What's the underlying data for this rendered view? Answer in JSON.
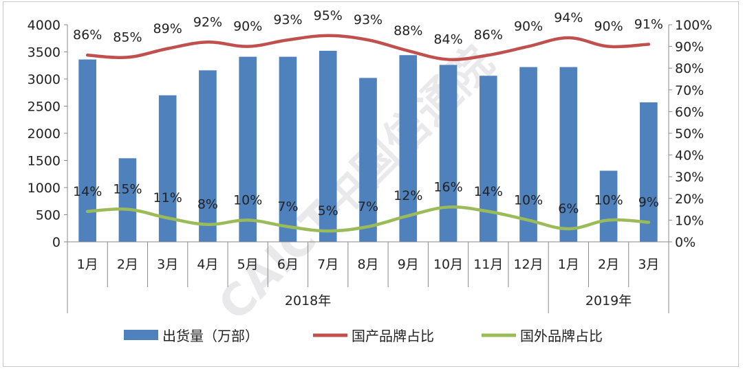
{
  "chart_data": {
    "type": "bar",
    "categories": [
      "1月",
      "2月",
      "3月",
      "4月",
      "5月",
      "6月",
      "7月",
      "8月",
      "9月",
      "10月",
      "11月",
      "12月",
      "1月",
      "2月",
      "3月"
    ],
    "groups": [
      {
        "label": "2018年",
        "count": 12
      },
      {
        "label": "2019年",
        "count": 3
      }
    ],
    "series": [
      {
        "name": "出货量（万部）",
        "type": "bar",
        "axis": "left",
        "values": [
          3360,
          1540,
          2700,
          3160,
          3410,
          3410,
          3520,
          3020,
          3440,
          3260,
          3060,
          3220,
          3220,
          1310,
          2570
        ],
        "color": "#4f81bd"
      },
      {
        "name": "国产品牌占比",
        "type": "line",
        "axis": "right",
        "values": [
          86,
          85,
          89,
          92,
          90,
          93,
          95,
          93,
          88,
          84,
          86,
          90,
          94,
          90,
          91
        ],
        "labels": [
          "86%",
          "85%",
          "89%",
          "92%",
          "90%",
          "93%",
          "95%",
          "93%",
          "88%",
          "84%",
          "86%",
          "90%",
          "94%",
          "90%",
          "91%"
        ],
        "color": "#c0504d"
      },
      {
        "name": "国外品牌占比",
        "type": "line",
        "axis": "right",
        "values": [
          14,
          15,
          11,
          8,
          10,
          7,
          5,
          7,
          12,
          16,
          14,
          10,
          6,
          10,
          9
        ],
        "labels": [
          "14%",
          "15%",
          "11%",
          "8%",
          "10%",
          "7%",
          "5%",
          "7%",
          "12%",
          "16%",
          "14%",
          "10%",
          "6%",
          "10%",
          "9%"
        ],
        "color": "#9bbb59"
      }
    ],
    "y_left": {
      "min": 0,
      "max": 4000,
      "step": 500,
      "ticks": [
        "0",
        "500",
        "1000",
        "1500",
        "2000",
        "2500",
        "3000",
        "3500",
        "4000"
      ]
    },
    "y_right": {
      "min": 0,
      "max": 100,
      "step": 10,
      "ticks": [
        "0%",
        "10%",
        "20%",
        "30%",
        "40%",
        "50%",
        "60%",
        "70%",
        "80%",
        "90%",
        "100%"
      ]
    },
    "legend_position": "bottom",
    "grid": false
  },
  "watermark": {
    "text": "CAICT中国信通院"
  }
}
